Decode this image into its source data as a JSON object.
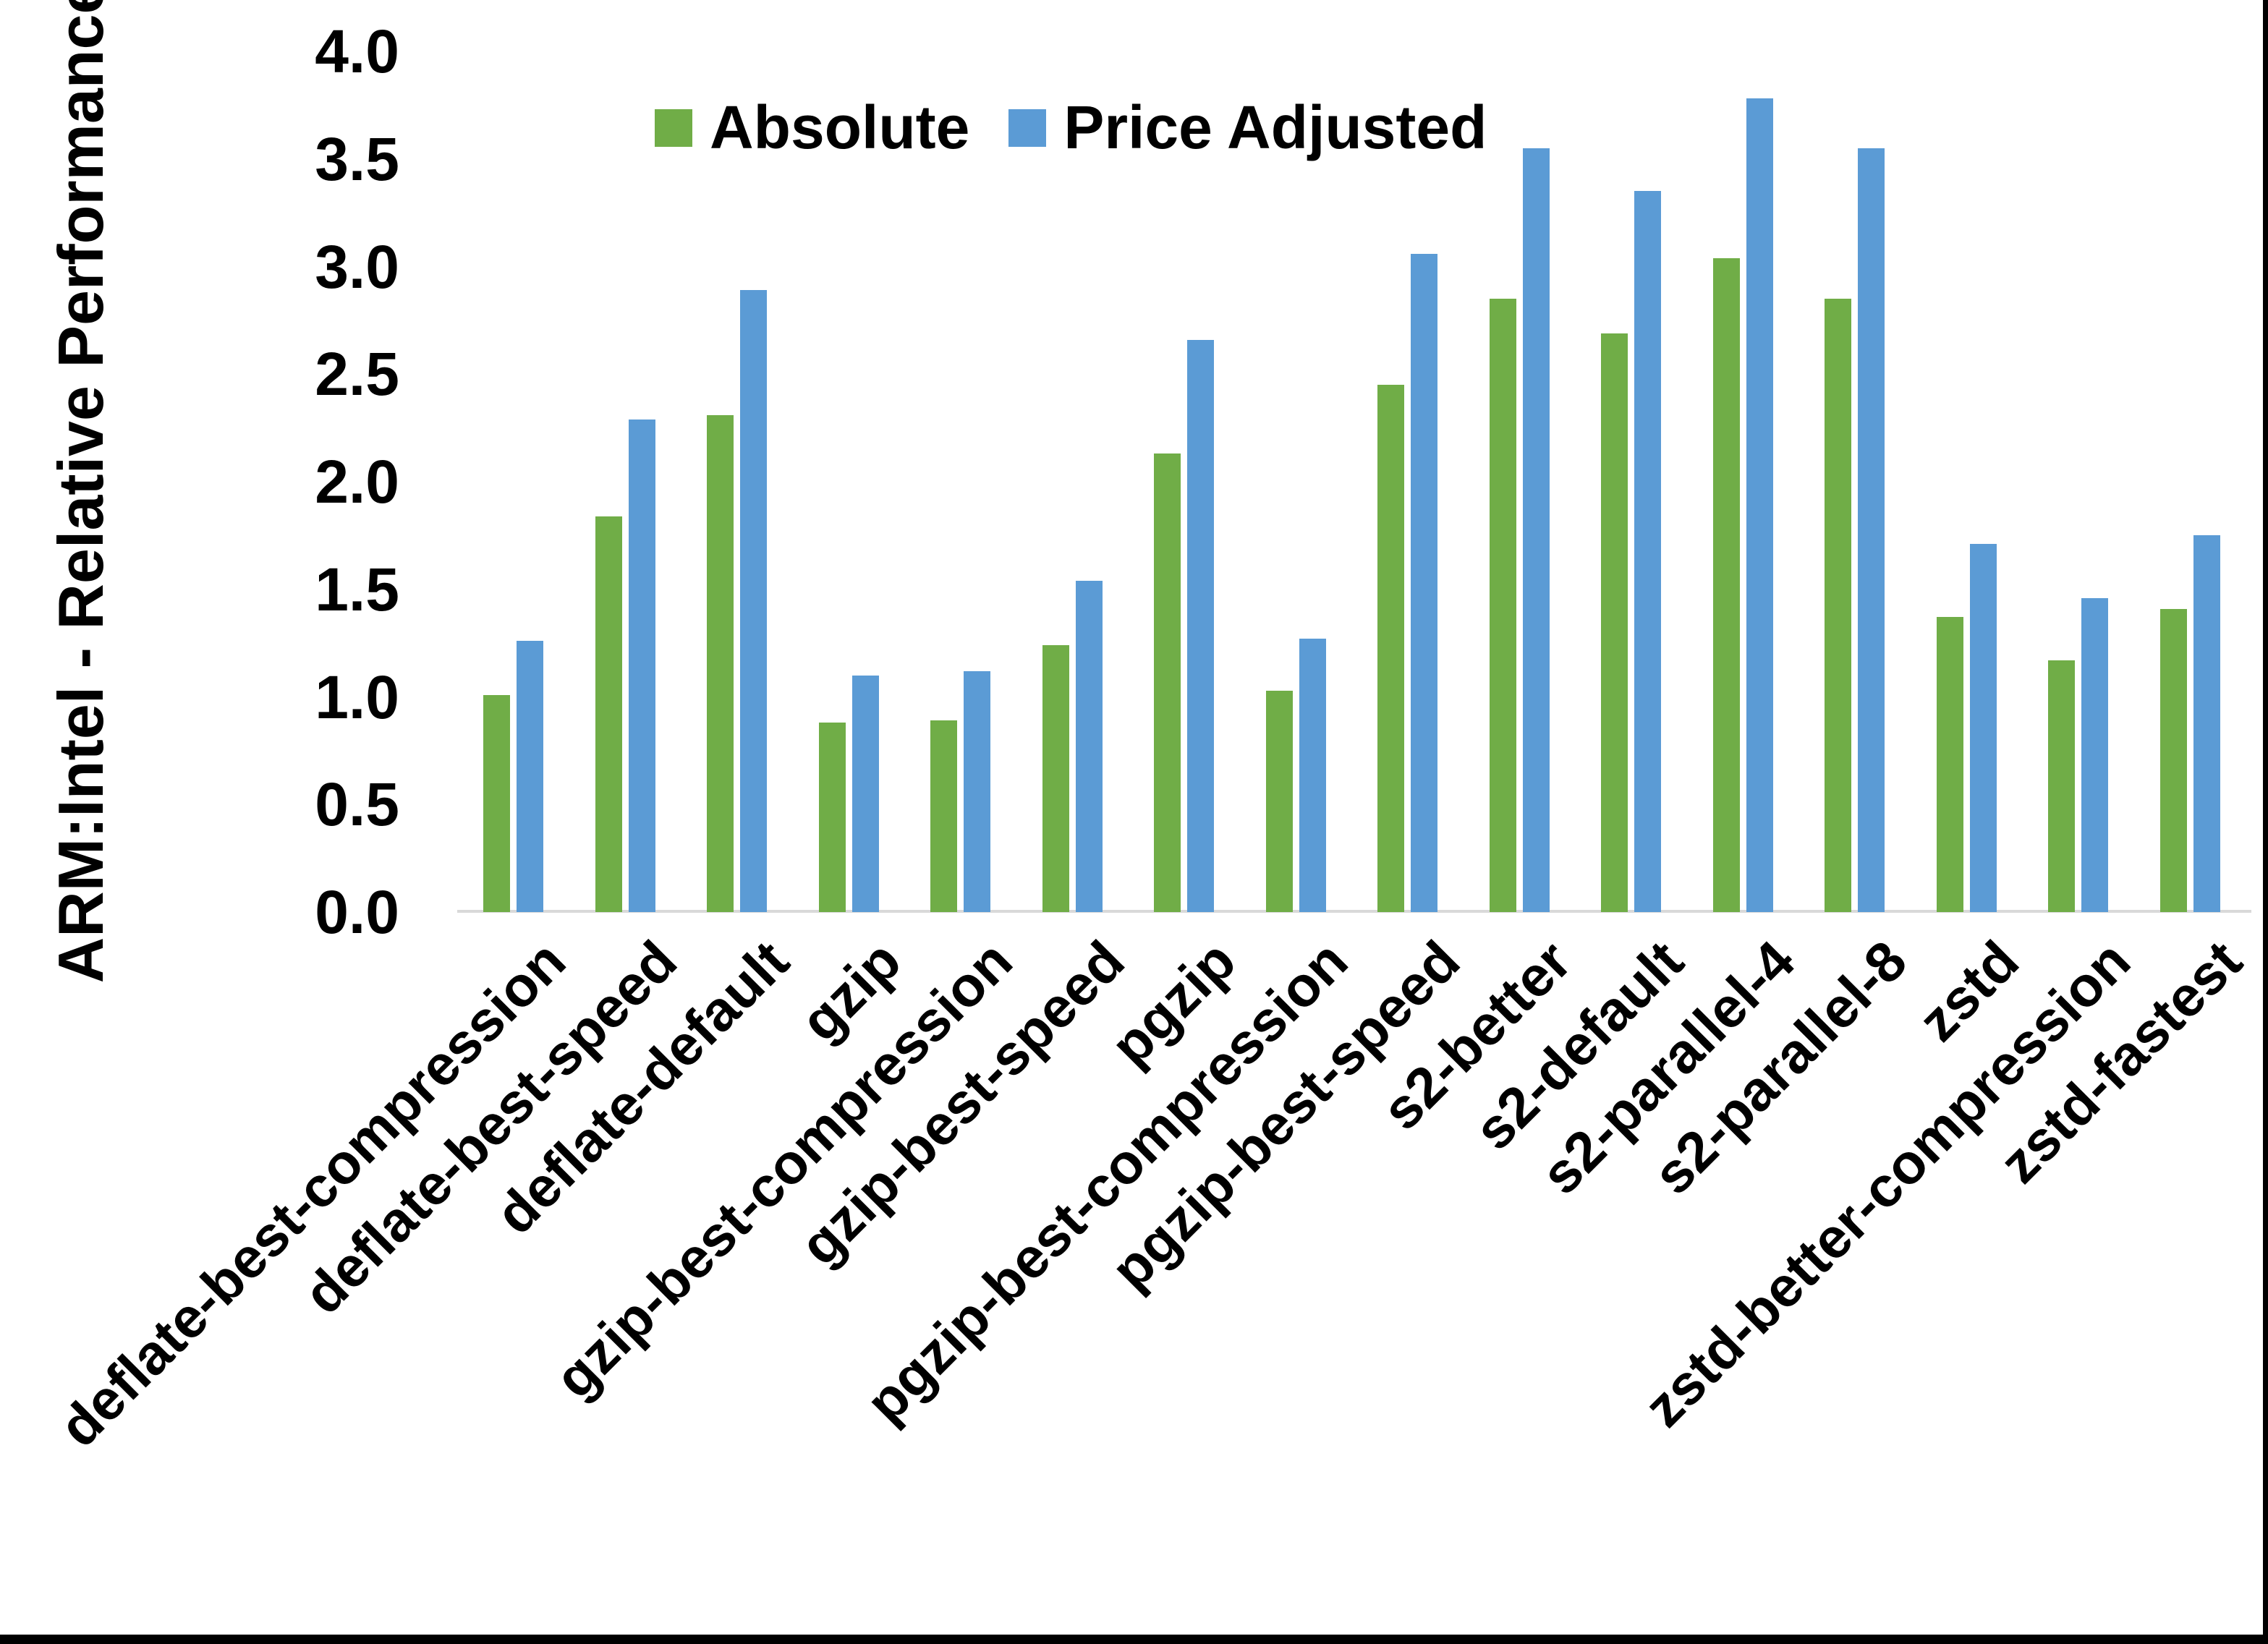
{
  "chart_data": {
    "type": "bar",
    "title": "",
    "xlabel": "",
    "ylabel": "ARM:Intel - Relative Performance",
    "ylim": [
      0.0,
      4.0
    ],
    "ytick_step": 0.5,
    "yticks": [
      "0.0",
      "0.5",
      "1.0",
      "1.5",
      "2.0",
      "2.5",
      "3.0",
      "3.5",
      "4.0"
    ],
    "grid": false,
    "legend_position": "top-center",
    "categories": [
      "deflate-best-compression",
      "deflate-best-speed",
      "deflate-default",
      "gzip",
      "gzip-best-compression",
      "gzip-best-speed",
      "pgzip",
      "pgzip-best-compression",
      "pgzip-best-speed",
      "s2-better",
      "s2-default",
      "s2-parallel-4",
      "s2-parallel-8",
      "zstd",
      "zstd-better-compression",
      "zstd-fastest"
    ],
    "series": [
      {
        "name": "Absolute",
        "color": "#70AD47",
        "values": [
          1.01,
          1.84,
          2.31,
          0.88,
          0.89,
          1.24,
          2.13,
          1.03,
          2.45,
          2.85,
          2.69,
          3.04,
          2.85,
          1.37,
          1.17,
          1.41
        ]
      },
      {
        "name": "Price Adjusted",
        "color": "#5B9BD5",
        "values": [
          1.26,
          2.29,
          2.89,
          1.1,
          1.12,
          1.54,
          2.66,
          1.27,
          3.06,
          3.55,
          3.35,
          3.78,
          3.55,
          1.71,
          1.46,
          1.75
        ]
      }
    ],
    "axis_line_color": "#D9D9D9",
    "text_color": "#000000"
  },
  "frame": {
    "right_border_color": "#000000",
    "bottom_border_color": "#000000"
  }
}
